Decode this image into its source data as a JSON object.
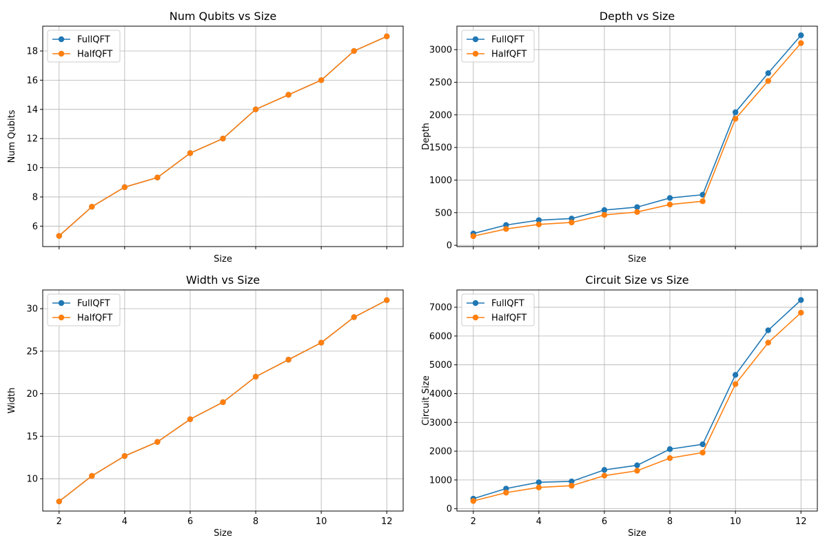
{
  "colors": {
    "FullQFT": "#1f77b4",
    "HalfQFT": "#ff7f0e",
    "grid": "#b0b0b0"
  },
  "chart_data": [
    {
      "type": "line",
      "title": "Num Qubits vs Size",
      "xlabel": "Size",
      "ylabel": "Num Qubits",
      "x": [
        2,
        3,
        4,
        5,
        6,
        7,
        8,
        9,
        10,
        11,
        12
      ],
      "xticks": [
        "",
        "",
        "",
        "",
        "",
        ""
      ],
      "xlim": [
        1.5,
        12.5
      ],
      "ylim": [
        4.6,
        19.7
      ],
      "yticks": [
        "6",
        "8",
        "10",
        "12",
        "14",
        "16",
        "18"
      ],
      "ytick_values": [
        6,
        8,
        10,
        12,
        14,
        16,
        18
      ],
      "grid": true,
      "legend": "upper-left",
      "series": [
        {
          "name": "FullQFT",
          "values": [
            5.33,
            7.33,
            8.67,
            9.33,
            11,
            12,
            14,
            15,
            16,
            18,
            19
          ]
        },
        {
          "name": "HalfQFT",
          "values": [
            5.33,
            7.33,
            8.67,
            9.33,
            11,
            12,
            14,
            15,
            16,
            18,
            19
          ]
        }
      ]
    },
    {
      "type": "line",
      "title": "Depth vs Size",
      "xlabel": "Size",
      "ylabel": "Depth",
      "x": [
        2,
        3,
        4,
        5,
        6,
        7,
        8,
        9,
        10,
        11,
        12
      ],
      "xticks": [
        "",
        "",
        "",
        "",
        "",
        ""
      ],
      "xlim": [
        1.5,
        12.5
      ],
      "ylim": [
        -20,
        3360
      ],
      "yticks": [
        "0",
        "500",
        "1000",
        "1500",
        "2000",
        "2500",
        "3000"
      ],
      "ytick_values": [
        0,
        500,
        1000,
        1500,
        2000,
        2500,
        3000
      ],
      "grid": true,
      "legend": "upper-left",
      "series": [
        {
          "name": "FullQFT",
          "values": [
            180,
            310,
            385,
            410,
            540,
            585,
            725,
            775,
            2040,
            2640,
            3220
          ]
        },
        {
          "name": "HalfQFT",
          "values": [
            140,
            250,
            320,
            350,
            465,
            510,
            625,
            675,
            1940,
            2520,
            3100
          ]
        }
      ]
    },
    {
      "type": "line",
      "title": "Width vs Size",
      "xlabel": "Size",
      "ylabel": "Width",
      "x": [
        2,
        3,
        4,
        5,
        6,
        7,
        8,
        9,
        10,
        11,
        12
      ],
      "xticks": [
        "2",
        "4",
        "6",
        "8",
        "10",
        "12"
      ],
      "xlim": [
        1.5,
        12.5
      ],
      "ylim": [
        6.2,
        32.2
      ],
      "yticks": [
        "10",
        "15",
        "20",
        "25",
        "30"
      ],
      "ytick_values": [
        10,
        15,
        20,
        25,
        30
      ],
      "grid": true,
      "legend": "upper-left",
      "series": [
        {
          "name": "FullQFT",
          "values": [
            7.33,
            10.33,
            12.67,
            14.33,
            17,
            19,
            22,
            24,
            26,
            29,
            31
          ]
        },
        {
          "name": "HalfQFT",
          "values": [
            7.33,
            10.33,
            12.67,
            14.33,
            17,
            19,
            22,
            24,
            26,
            29,
            31
          ]
        }
      ]
    },
    {
      "type": "line",
      "title": "Circuit Size vs Size",
      "xlabel": "Size",
      "ylabel": "Circuit Size",
      "x": [
        2,
        3,
        4,
        5,
        6,
        7,
        8,
        9,
        10,
        11,
        12
      ],
      "xticks": [
        "2",
        "4",
        "6",
        "8",
        "10",
        "12"
      ],
      "xlim": [
        1.5,
        12.5
      ],
      "ylim": [
        -80,
        7600
      ],
      "yticks": [
        "0",
        "1000",
        "2000",
        "3000",
        "4000",
        "5000",
        "6000",
        "7000"
      ],
      "ytick_values": [
        0,
        1000,
        2000,
        3000,
        4000,
        5000,
        6000,
        7000
      ],
      "grid": true,
      "legend": "upper-left",
      "series": [
        {
          "name": "FullQFT",
          "values": [
            350,
            700,
            920,
            950,
            1350,
            1510,
            2070,
            2240,
            4650,
            6200,
            7250
          ]
        },
        {
          "name": "HalfQFT",
          "values": [
            270,
            560,
            740,
            800,
            1150,
            1320,
            1760,
            1950,
            4330,
            5770,
            6810
          ]
        }
      ]
    }
  ]
}
